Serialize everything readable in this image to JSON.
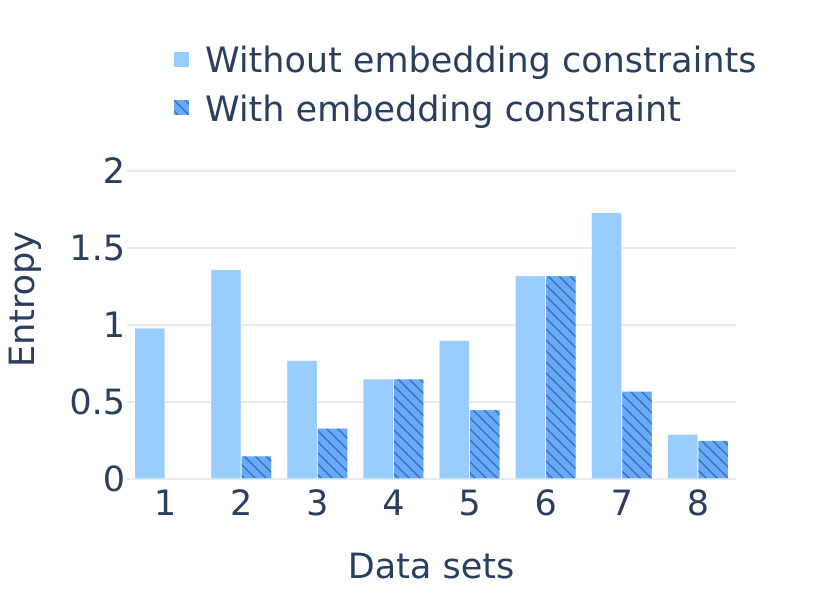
{
  "chart_data": {
    "type": "bar",
    "title": "",
    "xlabel": "Data sets",
    "ylabel": "Entropy",
    "categories": [
      "1",
      "2",
      "3",
      "4",
      "5",
      "6",
      "7",
      "8"
    ],
    "ylim": [
      0,
      2
    ],
    "yticks": [
      0,
      0.5,
      1,
      1.5,
      2
    ],
    "ytick_labels": [
      "0",
      "0.5",
      "1",
      "1.5",
      "2"
    ],
    "grid": true,
    "legend_position": "top",
    "series": [
      {
        "name": "Without embedding constraints",
        "color": "#99ccff",
        "pattern": "solid",
        "values": [
          0.98,
          1.36,
          0.77,
          0.65,
          0.9,
          1.32,
          1.73,
          0.29
        ]
      },
      {
        "name": "With embedding constraint",
        "color": "#66aaff",
        "pattern": "diagonal-hatch",
        "values": [
          0,
          0.15,
          0.33,
          0.65,
          0.45,
          1.32,
          0.57,
          0.25
        ]
      }
    ]
  }
}
